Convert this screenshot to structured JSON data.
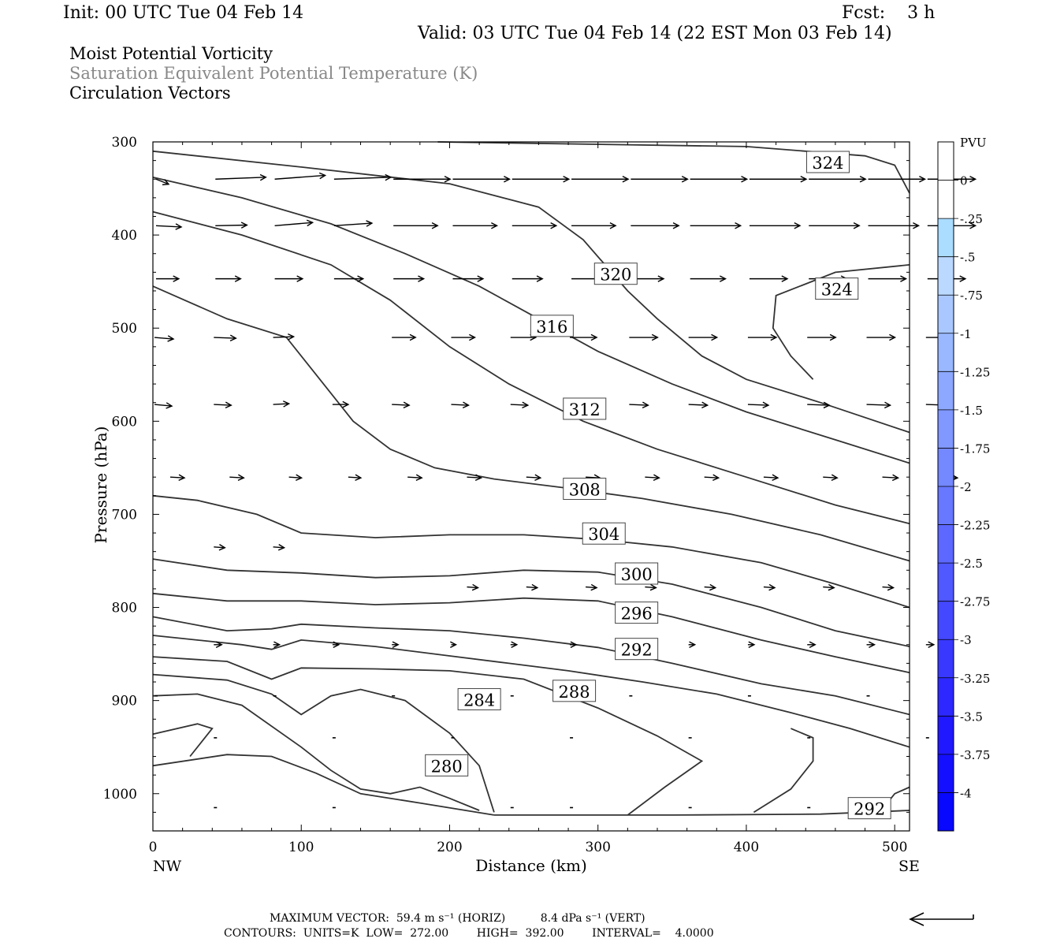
{
  "header": {
    "init": "Init: 00 UTC Tue 04 Feb 14",
    "fcst": "Fcst:    3 h",
    "valid": "Valid: 03 UTC Tue 04 Feb 14 (22 EST Mon 03 Feb 14)",
    "lines": [
      "Moist Potential Vorticity",
      "Saturation Equivalent Potential Temperature (K)",
      "Circulation Vectors"
    ]
  },
  "footer": {
    "max_vector": "MAXIMUM VECTOR:  59.4 m s⁻¹ (HORIZ)          8.4 dPa s⁻¹ (VERT)",
    "contours": "CONTOURS:  UNITS=K  LOW=  272.00        HIGH=  392.00        INTERVAL=    4.0000"
  },
  "colors": {
    "contour": "#333333",
    "vector": "#000000",
    "pv_colors": [
      "#ffffff",
      "#ffffff",
      "#aaddff",
      "#bbd8ff",
      "#aac8ff",
      "#99b8ff",
      "#8ca8ff",
      "#8098ff",
      "#7488ff",
      "#6878ff",
      "#5c68ff",
      "#5058ff",
      "#4448ff",
      "#3838ff",
      "#2c28ff",
      "#2018ff",
      "#1410ff",
      "#0808ff"
    ]
  },
  "chart_data": {
    "type": "contour",
    "xlabel": "Distance (km)",
    "ylabel": "Pressure (hPa)",
    "xlim": [
      0,
      510
    ],
    "ylim": [
      300,
      1040
    ],
    "xticks": [
      0,
      100,
      200,
      300,
      400,
      500
    ],
    "yticks": [
      300,
      400,
      500,
      600,
      700,
      800,
      900,
      1000
    ],
    "x_end_labels": {
      "left": "NW",
      "right": "SE"
    },
    "colorbar": {
      "title": "PVU",
      "labels": [
        "0",
        "-.25",
        "-.5",
        "-.75",
        "-1",
        "-1.25",
        "-1.5",
        "-1.75",
        "-2",
        "-2.25",
        "-2.5",
        "-2.75",
        "-3",
        "-3.25",
        "-3.5",
        "-3.75",
        "-4"
      ]
    },
    "contours": [
      {
        "level": 324,
        "points": [
          [
            192,
            300
          ],
          [
            400,
            305
          ],
          [
            480,
            315
          ],
          [
            500,
            325
          ],
          [
            510,
            355
          ]
        ]
      },
      {
        "level": 324,
        "points": [
          [
            0,
            310
          ],
          [
            100,
            327
          ],
          [
            200,
            345
          ],
          [
            260,
            370
          ],
          [
            290,
            405
          ],
          [
            320,
            460
          ],
          [
            340,
            490
          ],
          [
            370,
            530
          ],
          [
            400,
            555
          ],
          [
            450,
            580
          ],
          [
            510,
            612
          ]
        ]
      },
      {
        "level": 320,
        "points": [
          [
            0,
            338
          ],
          [
            60,
            360
          ],
          [
            120,
            388
          ],
          [
            170,
            420
          ],
          [
            220,
            455
          ],
          [
            260,
            490
          ],
          [
            300,
            525
          ],
          [
            350,
            560
          ],
          [
            400,
            590
          ],
          [
            460,
            620
          ],
          [
            510,
            645
          ]
        ]
      },
      {
        "level": 316,
        "points": [
          [
            0,
            375
          ],
          [
            60,
            400
          ],
          [
            120,
            432
          ],
          [
            160,
            470
          ],
          [
            200,
            520
          ],
          [
            240,
            560
          ],
          [
            290,
            600
          ],
          [
            340,
            630
          ],
          [
            400,
            660
          ],
          [
            460,
            690
          ],
          [
            510,
            710
          ]
        ]
      },
      {
        "level": 312,
        "points": [
          [
            0,
            455
          ],
          [
            50,
            490
          ],
          [
            90,
            510
          ],
          [
            115,
            560
          ],
          [
            135,
            600
          ],
          [
            160,
            630
          ],
          [
            190,
            650
          ],
          [
            230,
            662
          ],
          [
            280,
            672
          ],
          [
            330,
            683
          ],
          [
            390,
            700
          ],
          [
            450,
            722
          ],
          [
            510,
            750
          ]
        ]
      },
      {
        "level": 308,
        "points": [
          [
            0,
            680
          ],
          [
            30,
            685
          ],
          [
            70,
            700
          ],
          [
            100,
            720
          ],
          [
            150,
            725
          ],
          [
            200,
            722
          ],
          [
            250,
            722
          ],
          [
            300,
            727
          ],
          [
            350,
            735
          ],
          [
            410,
            752
          ],
          [
            460,
            775
          ],
          [
            510,
            800
          ]
        ]
      },
      {
        "level": 304,
        "points": [
          [
            0,
            748
          ],
          [
            50,
            760
          ],
          [
            100,
            763
          ],
          [
            150,
            768
          ],
          [
            200,
            766
          ],
          [
            250,
            760
          ],
          [
            300,
            762
          ],
          [
            350,
            775
          ],
          [
            410,
            800
          ],
          [
            460,
            825
          ],
          [
            510,
            842
          ]
        ]
      },
      {
        "level": 300,
        "points": [
          [
            0,
            785
          ],
          [
            50,
            793
          ],
          [
            100,
            793
          ],
          [
            150,
            797
          ],
          [
            200,
            795
          ],
          [
            250,
            790
          ],
          [
            300,
            793
          ],
          [
            350,
            810
          ],
          [
            410,
            835
          ],
          [
            460,
            853
          ],
          [
            510,
            870
          ]
        ]
      },
      {
        "level": 296,
        "points": [
          [
            0,
            810
          ],
          [
            50,
            825
          ],
          [
            80,
            823
          ],
          [
            100,
            818
          ],
          [
            150,
            822
          ],
          [
            200,
            825
          ],
          [
            250,
            833
          ],
          [
            300,
            843
          ],
          [
            350,
            860
          ],
          [
            410,
            882
          ],
          [
            460,
            895
          ],
          [
            510,
            915
          ]
        ]
      },
      {
        "level": 292,
        "points": [
          [
            0,
            830
          ],
          [
            60,
            840
          ],
          [
            80,
            845
          ],
          [
            100,
            835
          ],
          [
            150,
            842
          ],
          [
            200,
            852
          ],
          [
            240,
            860
          ],
          [
            280,
            868
          ],
          [
            330,
            880
          ],
          [
            380,
            893
          ],
          [
            430,
            913
          ],
          [
            470,
            930
          ],
          [
            510,
            950
          ]
        ]
      },
      {
        "level": 288,
        "points": [
          [
            0,
            853
          ],
          [
            50,
            858
          ],
          [
            80,
            877
          ],
          [
            100,
            865
          ],
          [
            150,
            866
          ],
          [
            200,
            868
          ],
          [
            250,
            877
          ],
          [
            300,
            908
          ],
          [
            340,
            938
          ],
          [
            370,
            965
          ],
          [
            345,
            993
          ],
          [
            320,
            1023
          ]
        ]
      },
      {
        "level": 284,
        "points": [
          [
            0,
            872
          ],
          [
            50,
            878
          ],
          [
            80,
            893
          ],
          [
            100,
            915
          ],
          [
            120,
            895
          ],
          [
            140,
            888
          ],
          [
            170,
            900
          ],
          [
            200,
            935
          ],
          [
            220,
            970
          ],
          [
            230,
            1020
          ]
        ]
      },
      {
        "level": 280,
        "points": [
          [
            0,
            895
          ],
          [
            30,
            893
          ],
          [
            60,
            905
          ],
          [
            100,
            950
          ],
          [
            120,
            975
          ],
          [
            140,
            995
          ],
          [
            160,
            1000
          ],
          [
            180,
            993
          ],
          [
            200,
            1005
          ],
          [
            220,
            1018
          ]
        ]
      },
      {
        "level": 280,
        "points": [
          [
            0,
            936
          ],
          [
            30,
            925
          ],
          [
            40,
            930
          ],
          [
            25,
            960
          ]
        ]
      },
      {
        "level": 292,
        "points": [
          [
            430,
            930
          ],
          [
            445,
            940
          ],
          [
            445,
            965
          ],
          [
            430,
            995
          ],
          [
            405,
            1020
          ]
        ]
      },
      {
        "level": 324,
        "points": [
          [
            510,
            432
          ],
          [
            460,
            440
          ],
          [
            420,
            465
          ],
          [
            418,
            500
          ],
          [
            430,
            530
          ],
          [
            445,
            555
          ]
        ]
      },
      {
        "level": 292,
        "points": [
          [
            490,
            1020
          ],
          [
            500,
            1000
          ],
          [
            510,
            993
          ]
        ]
      },
      {
        "level": 280,
        "points": [
          [
            0,
            970
          ],
          [
            50,
            958
          ],
          [
            80,
            960
          ],
          [
            110,
            978
          ],
          [
            140,
            1000
          ],
          [
            180,
            1010
          ],
          [
            230,
            1023
          ]
        ]
      },
      {
        "level": 292,
        "points": [
          [
            230,
            1023
          ],
          [
            350,
            1023
          ],
          [
            450,
            1022
          ],
          [
            510,
            1018
          ]
        ]
      }
    ],
    "contour_labels": [
      {
        "text": "324",
        "x": 455,
        "y": 322
      },
      {
        "text": "324",
        "x": 461,
        "y": 458
      },
      {
        "text": "320",
        "x": 312,
        "y": 442
      },
      {
        "text": "316",
        "x": 269,
        "y": 498
      },
      {
        "text": "312",
        "x": 291,
        "y": 587
      },
      {
        "text": "308",
        "x": 291,
        "y": 673
      },
      {
        "text": "304",
        "x": 304,
        "y": 721
      },
      {
        "text": "300",
        "x": 326,
        "y": 764
      },
      {
        "text": "296",
        "x": 326,
        "y": 806
      },
      {
        "text": "292",
        "x": 326,
        "y": 845
      },
      {
        "text": "288",
        "x": 284,
        "y": 890
      },
      {
        "text": "284",
        "x": 220,
        "y": 899
      },
      {
        "text": "280",
        "x": 198,
        "y": 970
      },
      {
        "text": "292",
        "x": 483,
        "y": 1016
      }
    ],
    "vectors": [
      {
        "p": 340,
        "u": [
          1,
          4,
          4,
          4.5,
          4.5,
          4.5,
          4.5,
          4.5,
          4.5,
          4.5,
          4.5,
          4.5,
          4.5,
          3.8
        ],
        "w": [
          0.8,
          -0.3,
          -0.6,
          -0.3,
          0,
          0,
          0,
          0,
          0,
          0,
          0,
          0,
          0,
          0
        ]
      },
      {
        "p": 390,
        "u": [
          2,
          2.5,
          3,
          3,
          3.5,
          3.5,
          3.5,
          3.5,
          3.8,
          4,
          4,
          4,
          4,
          3.8
        ],
        "w": [
          0.2,
          -0.1,
          -0.5,
          -0.4,
          0,
          0,
          0,
          0,
          0,
          0,
          0,
          0,
          0,
          0
        ]
      },
      {
        "p": 447,
        "u": [
          1.8,
          2,
          2.2,
          2.3,
          2.4,
          2.4,
          2.4,
          2.5,
          2.6,
          2.8,
          3,
          3,
          3,
          3
        ],
        "w": [
          0,
          0,
          0,
          0,
          0,
          0,
          0,
          0,
          0,
          0,
          0,
          0,
          0,
          0
        ]
      }
    ]
  }
}
